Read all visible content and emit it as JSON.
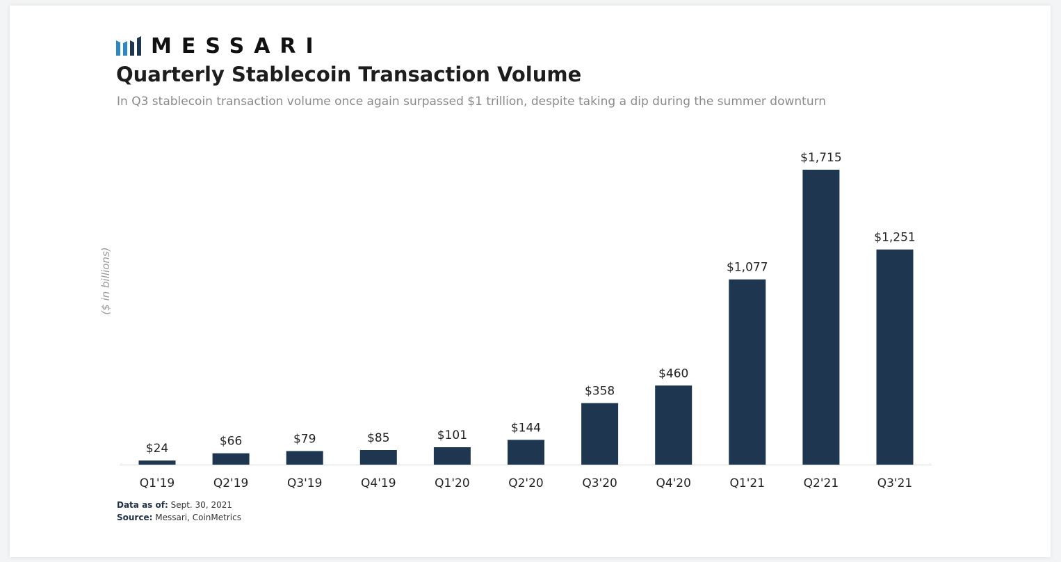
{
  "brand": {
    "name": "MESSARI"
  },
  "chart_data": {
    "type": "bar",
    "title": "Quarterly Stablecoin Transaction Volume",
    "subtitle": "In Q3 stablecoin transaction volume once again surpassed $1 trillion, despite taking a dip during the summer downturn",
    "xlabel": "",
    "ylabel": "($ in billions)",
    "categories": [
      "Q1'19",
      "Q2'19",
      "Q3'19",
      "Q4'19",
      "Q1'20",
      "Q2'20",
      "Q3'20",
      "Q4'20",
      "Q1'21",
      "Q2'21",
      "Q3'21"
    ],
    "values": [
      24,
      66,
      79,
      85,
      101,
      144,
      358,
      460,
      1077,
      1715,
      1251
    ],
    "data_labels": [
      "$24",
      "$66",
      "$79",
      "$85",
      "$101",
      "$144",
      "$358",
      "$460",
      "$1,077",
      "$1,715",
      "$1,251"
    ],
    "ylim": [
      0,
      1715
    ],
    "grid": false,
    "legend": "none",
    "bar_color": "#1f3650"
  },
  "footer": {
    "date_label": "Data as of:",
    "date_value": "Sept. 30, 2021",
    "source_label": "Source:",
    "source_value": "Messari,  CoinMetrics"
  },
  "colors": {
    "bar": "#1f3650",
    "logo_blue": "#2f87c6"
  }
}
